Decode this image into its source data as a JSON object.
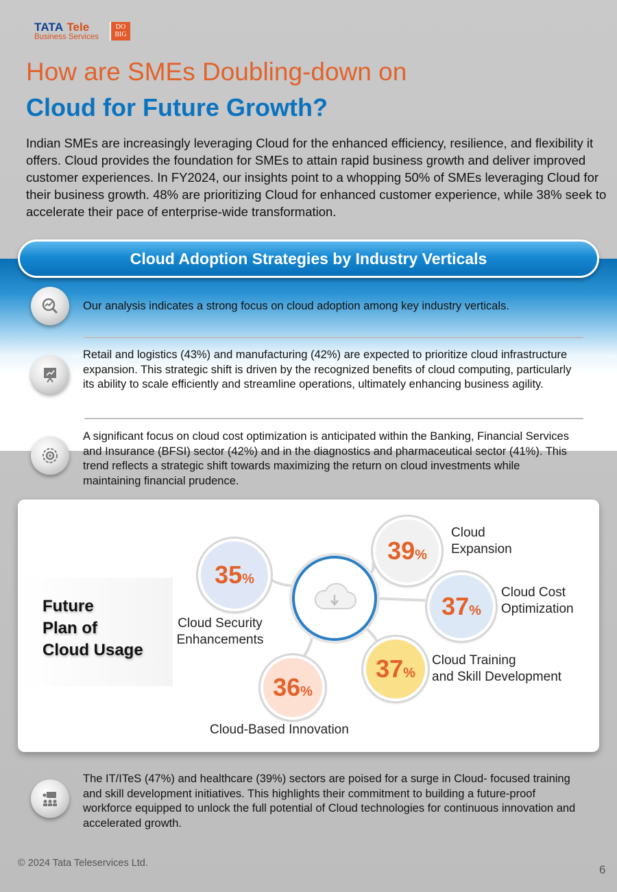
{
  "brand": {
    "name": "TATA",
    "name2": "Tele",
    "subtitle": "Business Services",
    "badge_line1": "DO",
    "badge_line2": "BIG"
  },
  "title": {
    "line1": "How are SMEs Doubling-down on",
    "line2": "Cloud for Future Growth?"
  },
  "intro": "Indian SMEs are increasingly leveraging Cloud for the enhanced efficiency, resilience, and flexibility it offers. Cloud provides the foundation for SMEs to attain rapid business growth and deliver improved customer experiences. In FY2024, our insights point to a whopping 50% of SMEs leveraging Cloud for their business growth. 48% are prioritizing Cloud for enhanced customer experience, while 38% seek to accelerate their pace of enterprise-wide transformation.",
  "section_title": "Cloud Adoption Strategies by Industry Verticals",
  "points": [
    {
      "text": "Our analysis indicates a strong focus on cloud adoption among key industry verticals."
    },
    {
      "text": "Retail and logistics (43%) and manufacturing (42%) are expected to prioritize cloud infrastructure expansion. This strategic shift is driven by the recognized benefits of cloud computing, particularly its ability to scale efficiently and streamline operations, ultimately enhancing business agility."
    },
    {
      "text": "A significant focus on cloud cost optimization is anticipated within the Banking, Financial Services and Insurance (BFSI) sector (42%) and in the diagnostics and pharmaceutical sector (41%). This trend reflects a strategic shift towards maximizing the return on cloud investments while maintaining financial prudence."
    },
    {
      "text": "The IT/ITeS (47%) and healthcare (39%) sectors are poised for a surge in Cloud- focused training and skill development initiatives. This highlights their commitment to building a future-proof workforce equipped to unlock the full potential of Cloud technologies for continuous innovation and accelerated growth."
    }
  ],
  "future_plan": {
    "heading_l1": "Future",
    "heading_l2": "Plan of",
    "heading_l3": "Cloud Usage",
    "pct_sign": "%",
    "items": [
      {
        "value": "35",
        "label1": "Cloud Security",
        "label2": "Enhancements",
        "fill": "#dfe7f7"
      },
      {
        "value": "39",
        "label1": "Cloud",
        "label2": "Expansion",
        "fill": "#f1f1f1"
      },
      {
        "value": "37",
        "label1": "Cloud Cost",
        "label2": "Optimization",
        "fill": "#dde8f6"
      },
      {
        "value": "37",
        "label1": "Cloud Training",
        "label2": "and Skill Development",
        "fill": "#fbe08a"
      },
      {
        "value": "36",
        "label1": "Cloud-Based Innovation",
        "label2": "",
        "fill": "#fde0d2"
      }
    ]
  },
  "footer": {
    "copyright": "© 2024 Tata Teleservices Ltd.",
    "page": "6"
  },
  "colors": {
    "orange": "#e2622a",
    "blue": "#0a73c0"
  }
}
